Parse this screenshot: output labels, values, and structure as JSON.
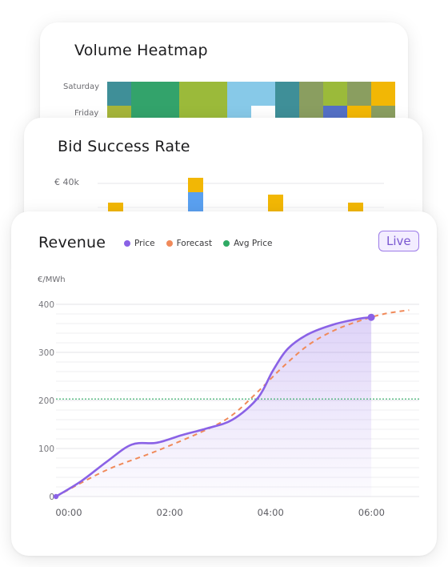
{
  "heatmap_card": {
    "title": "Volume Heatmap",
    "row_labels": [
      "Saturday",
      "Friday"
    ]
  },
  "bids_card": {
    "title": "Bid Success Rate",
    "y_tick": "€ 40k"
  },
  "revenue_card": {
    "title": "Revenue",
    "live_label": "Live",
    "unit_label": "€/MWh"
  },
  "colors": {
    "price": "#8a62e6",
    "forecast": "#f08a5a",
    "avg": "#2faa64",
    "bid_gold": "#f2b705",
    "bid_blue": "#5aa0f0"
  },
  "chart_data": [
    {
      "type": "heatmap",
      "title": "Volume Heatmap",
      "rows": [
        "Saturday",
        "Friday"
      ],
      "cells": [
        [
          "#3f8f98",
          "#33a36b",
          "#33a36b",
          "#9bba3a",
          "#9bba3a",
          "#87c9e8",
          "#87c9e8",
          "#3f8f98",
          "#8a9e60",
          "#9bba3a",
          "#8a9e60",
          "#f2b705"
        ],
        [
          "#a6b53a",
          "#33a36b",
          "#33a36b",
          "#9bba3a",
          "#9bba3a",
          "#87c9e8",
          "#ffffff",
          "#3f8f98",
          "#8a9e60",
          "#5470c6",
          "#f2b705",
          "#8a9e60"
        ]
      ]
    },
    {
      "type": "bar",
      "title": "Bid Success Rate",
      "y_tick": "€ 40k"
    },
    {
      "type": "area",
      "title": "Revenue",
      "ylabel": "€/MWh",
      "x_ticks": [
        "00:00",
        "02:00",
        "04:00",
        "06:00"
      ],
      "y_ticks": [
        0,
        100,
        200,
        300,
        400
      ],
      "xlim": [
        0,
        7.2
      ],
      "ylim": [
        0,
        400
      ],
      "series": [
        {
          "name": "Price",
          "x": [
            0,
            0.5,
            1.0,
            1.5,
            2.0,
            2.5,
            3.0,
            3.5,
            4.0,
            4.3,
            4.6,
            5.0,
            5.5,
            6.0,
            6.25
          ],
          "y": [
            0,
            32,
            72,
            108,
            112,
            128,
            142,
            160,
            205,
            262,
            308,
            338,
            358,
            370,
            373
          ]
        },
        {
          "name": "Forecast",
          "x": [
            0,
            1.0,
            2.0,
            3.0,
            3.5,
            4.0,
            4.5,
            5.0,
            5.5,
            6.0,
            6.5,
            7.0
          ],
          "y": [
            0,
            55,
            95,
            140,
            170,
            218,
            270,
            315,
            345,
            365,
            380,
            388
          ]
        },
        {
          "name": "Avg Price",
          "y": [
            203
          ]
        }
      ],
      "grid": true,
      "legend": "top"
    }
  ]
}
